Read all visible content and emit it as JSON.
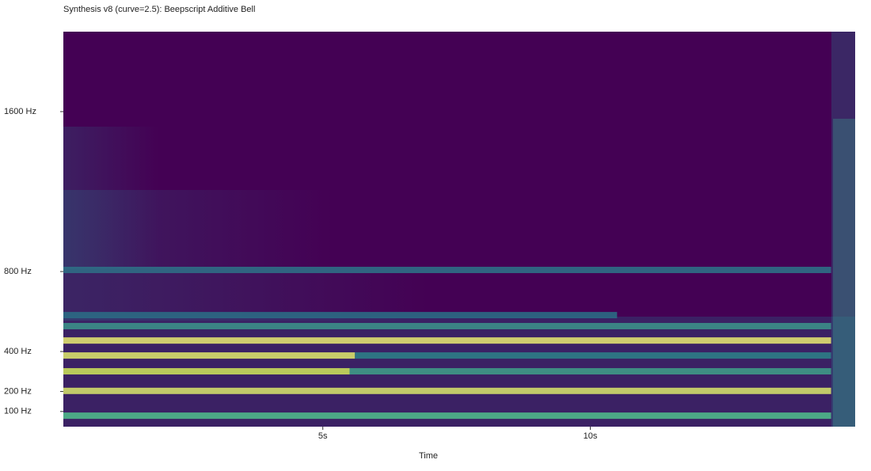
{
  "chart_data": {
    "type": "spectrogram",
    "title": "Synthesis v8 (curve=2.5): Beepscript Additive Bell",
    "xlabel": "Time",
    "background": "#440154",
    "xlim": [
      0.15,
      14.95
    ],
    "xticks": [
      {
        "value": 5,
        "label": "5s"
      },
      {
        "value": 10,
        "label": "10s"
      }
    ],
    "ylim": [
      24,
      2000
    ],
    "yticks": [
      {
        "value": 1600,
        "label": "1600 Hz"
      },
      {
        "value": 800,
        "label": "800 Hz"
      },
      {
        "value": 400,
        "label": "400 Hz"
      },
      {
        "value": 200,
        "label": "200 Hz"
      },
      {
        "value": 100,
        "label": "100 Hz"
      }
    ],
    "partials": [
      {
        "freq": 79,
        "start": 0.15,
        "end": 14.5,
        "color": "#4fb88a"
      },
      {
        "freq": 203,
        "start": 0.15,
        "end": 14.5,
        "color": "#d2dd6a"
      },
      {
        "freq": 301,
        "start": 0.15,
        "end": 5.5,
        "color": "#c8dc5a"
      },
      {
        "freq": 301,
        "start": 5.5,
        "end": 14.5,
        "color": "#3f9a86"
      },
      {
        "freq": 380,
        "start": 0.15,
        "end": 5.6,
        "color": "#d8e06a"
      },
      {
        "freq": 380,
        "start": 5.6,
        "end": 14.5,
        "color": "#2d7d86"
      },
      {
        "freq": 455,
        "start": 0.15,
        "end": 14.5,
        "color": "#e0e070"
      },
      {
        "freq": 527,
        "start": 0.15,
        "end": 14.5,
        "color": "#3c8f88"
      },
      {
        "freq": 582,
        "start": 0.15,
        "end": 10.5,
        "color": "#2b6a84"
      },
      {
        "freq": 808,
        "start": 0.15,
        "end": 14.5,
        "color": "#2f6f86"
      }
    ]
  }
}
